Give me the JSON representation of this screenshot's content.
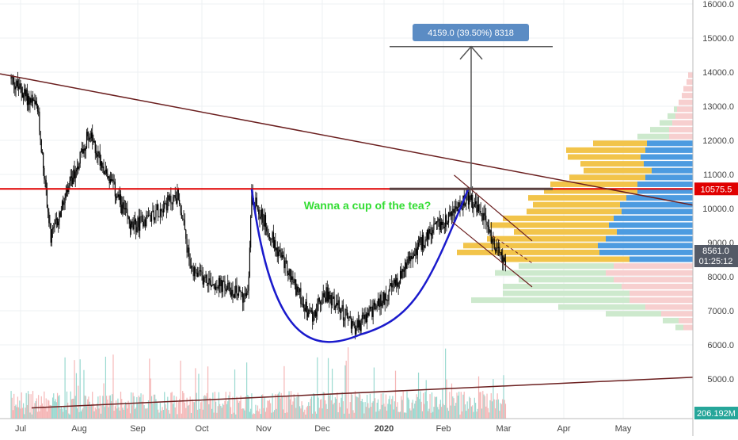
{
  "chart_data": {
    "type": "candlestick",
    "title": "",
    "xlabel": "",
    "ylabel": "",
    "x_tick_labels": [
      "Jul",
      "Aug",
      "Sep",
      "Oct",
      "Nov",
      "Dec",
      "2020",
      "Feb",
      "Mar",
      "Apr",
      "May"
    ],
    "y_tick_labels": [
      "16000.0",
      "15000.0",
      "14000.0",
      "13000.0",
      "12000.0",
      "11000.0",
      "10000.0",
      "9000.0",
      "8000.0",
      "7000.0",
      "6000.0",
      "5000.0"
    ],
    "ylim": [
      4200,
      16100
    ],
    "price_key_points": [
      {
        "date": "2019-06-26",
        "price": 13800
      },
      {
        "date": "2019-07-10",
        "price": 12900
      },
      {
        "date": "2019-07-17",
        "price": 9100
      },
      {
        "date": "2019-08-06",
        "price": 12200
      },
      {
        "date": "2019-08-29",
        "price": 9400
      },
      {
        "date": "2019-09-20",
        "price": 10400
      },
      {
        "date": "2019-09-26",
        "price": 8100
      },
      {
        "date": "2019-10-24",
        "price": 7400
      },
      {
        "date": "2019-10-26",
        "price": 10400
      },
      {
        "date": "2019-11-08",
        "price": 8800
      },
      {
        "date": "2019-11-25",
        "price": 6800
      },
      {
        "date": "2019-12-03",
        "price": 7500
      },
      {
        "date": "2019-12-18",
        "price": 6500
      },
      {
        "date": "2020-01-06",
        "price": 7700
      },
      {
        "date": "2020-01-19",
        "price": 8900
      },
      {
        "date": "2020-02-13",
        "price": 10300
      },
      {
        "date": "2020-02-21",
        "price": 9700
      },
      {
        "date": "2020-02-26",
        "price": 8800
      },
      {
        "date": "2020-03-02",
        "price": 8500
      }
    ],
    "annotations": {
      "cup_text": "Wanna a cup of the tea?",
      "measure_label": "4159.0 (39.50%) 8318",
      "price_level_label": "10575.5",
      "price_level": 10575.5,
      "current_price_label": "8561.0",
      "countdown_label": "01:25:12",
      "volume_label": "206.192M",
      "target_level": 14750,
      "cup_bottom": 6300
    },
    "colors": {
      "candle": "#000000",
      "resistance_line": "#e00000",
      "trendline": "#6b1f1f",
      "cup": "#1a1acc",
      "measure_arrow": "#555555",
      "measure_label_bg": "#5b8cc4",
      "cup_text": "#33dd33",
      "volume_profile_up": "#f2c44a",
      "volume_profile_down": "#4c9be0",
      "volume_profile_faded_up": "#cde9cd",
      "volume_profile_faded_down": "#f7cfcf",
      "volume_up": "#7fd0c4",
      "volume_down": "#f2a4a4",
      "axis_text": "#444444",
      "current_price_bg": "#545a66",
      "volume_label_bg": "#26a69a"
    }
  }
}
